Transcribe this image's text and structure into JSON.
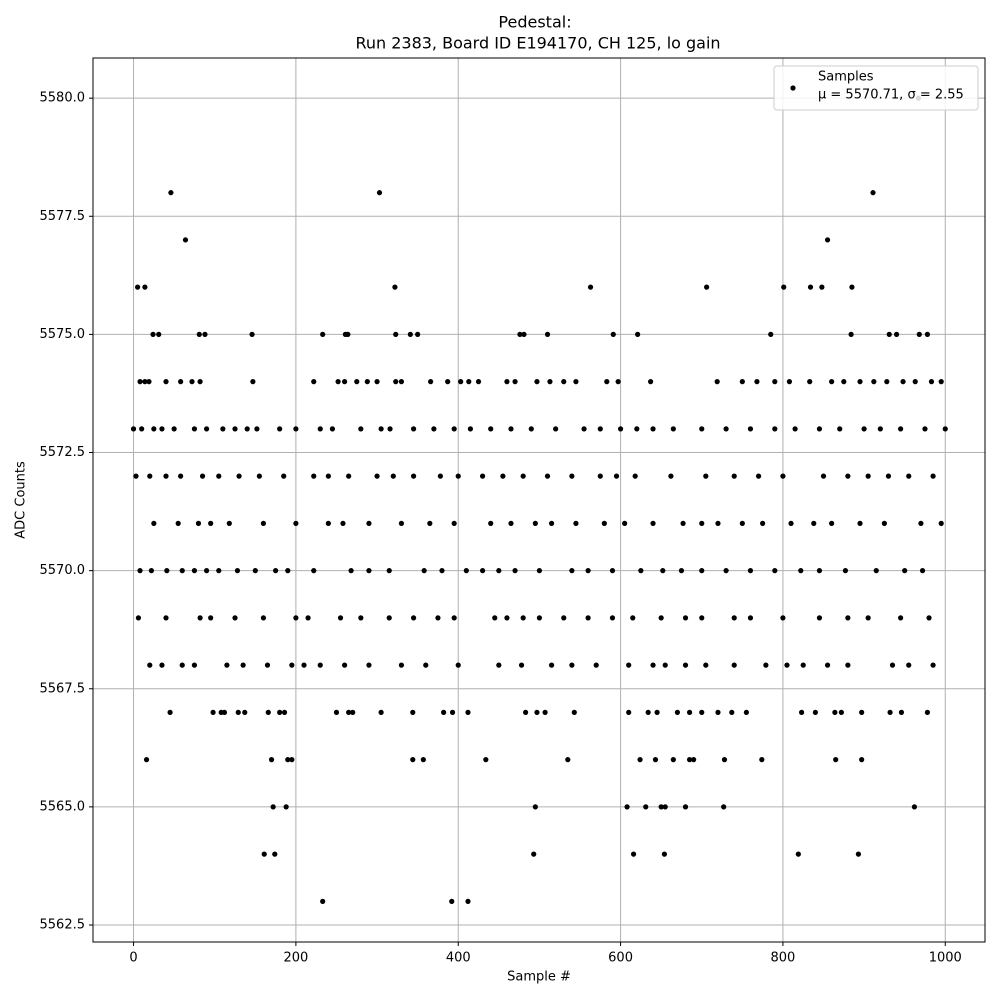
{
  "chart_data": {
    "type": "scatter",
    "title": "Pedestal:",
    "subtitle": "Run 2383, Board ID E194170, CH 125, lo gain",
    "x_label": "Sample #",
    "y_label": "ADC Counts",
    "legend_note": "μ = 5570.71, σ = 2.55",
    "legend_position": "upper right",
    "grid": true,
    "xlim": [
      -49.95,
      1048.95
    ],
    "ylim": [
      5562.14,
      5580.85
    ],
    "xticks": [
      0,
      200,
      400,
      600,
      800,
      1000
    ],
    "yticks": [
      5562.5,
      {
        "value": 5565,
        "label": "5565.0"
      },
      5567.5,
      {
        "value": 5570,
        "label": "5570.0"
      },
      5572.5,
      {
        "value": 5575,
        "label": "5575.0"
      },
      5577.5,
      {
        "value": 5580,
        "label": "5580.0"
      }
    ],
    "series": [
      {
        "name": "Samples",
        "color": "#000000",
        "x": [
          5,
          14,
          46,
          64,
          303,
          322,
          563,
          706,
          801,
          834,
          848,
          855,
          885,
          911,
          967,
          233,
          392,
          412,
          161,
          174,
          493,
          616,
          654,
          819,
          893,
          172,
          188,
          495,
          608,
          631,
          650,
          655,
          680,
          727,
          962,
          16,
          170,
          190,
          195,
          344,
          357,
          434,
          535,
          624,
          643,
          665,
          685,
          690,
          728,
          774,
          865,
          897,
          24,
          31,
          81,
          88,
          146,
          233,
          261,
          264,
          323,
          341,
          350,
          476,
          481,
          510,
          591,
          621,
          785,
          884,
          931,
          940,
          968,
          978,
          45,
          98,
          108,
          112,
          129,
          137,
          166,
          180,
          186,
          250,
          265,
          270,
          305,
          344,
          382,
          393,
          412,
          483,
          497,
          507,
          543,
          610,
          634,
          645,
          670,
          685,
          700,
          720,
          737,
          755,
          823,
          840,
          864,
          872,
          897,
          932,
          946,
          978,
          8,
          14,
          19,
          40,
          58,
          72,
          82,
          147,
          222,
          252,
          260,
          275,
          288,
          300,
          323,
          330,
          366,
          387,
          403,
          413,
          425,
          460,
          470,
          497,
          513,
          530,
          545,
          583,
          597,
          637,
          719,
          750,
          768,
          790,
          808,
          833,
          860,
          875,
          895,
          912,
          928,
          948,
          963,
          983,
          995,
          0,
          10,
          25,
          35,
          50,
          75,
          90,
          110,
          125,
          140,
          152,
          180,
          200,
          230,
          245,
          280,
          305,
          316,
          345,
          370,
          395,
          415,
          440,
          465,
          490,
          520,
          555,
          575,
          600,
          620,
          640,
          665,
          700,
          730,
          760,
          790,
          815,
          845,
          870,
          900,
          920,
          945,
          975,
          1000,
          3,
          20,
          40,
          58,
          85,
          105,
          130,
          155,
          185,
          222,
          240,
          265,
          300,
          320,
          345,
          378,
          400,
          430,
          455,
          480,
          510,
          540,
          575,
          595,
          618,
          662,
          705,
          740,
          770,
          800,
          850,
          880,
          905,
          930,
          955,
          985,
          25,
          55,
          80,
          95,
          118,
          160,
          200,
          240,
          258,
          290,
          330,
          365,
          395,
          440,
          465,
          495,
          515,
          545,
          580,
          605,
          640,
          677,
          700,
          720,
          750,
          775,
          810,
          838,
          860,
          895,
          925,
          970,
          995,
          8,
          22,
          41,
          60,
          75,
          90,
          105,
          128,
          150,
          175,
          190,
          222,
          268,
          290,
          315,
          358,
          380,
          410,
          430,
          450,
          470,
          500,
          540,
          560,
          590,
          625,
          652,
          675,
          700,
          730,
          760,
          790,
          822,
          845,
          877,
          915,
          950,
          972,
          6,
          40,
          82,
          95,
          125,
          160,
          200,
          215,
          255,
          280,
          315,
          345,
          375,
          395,
          445,
          460,
          480,
          500,
          530,
          560,
          590,
          615,
          650,
          680,
          700,
          740,
          760,
          800,
          845,
          880,
          905,
          945,
          980,
          20,
          35,
          60,
          75,
          115,
          135,
          165,
          195,
          210,
          230,
          260,
          290,
          330,
          360,
          400,
          450,
          478,
          515,
          540,
          570,
          610,
          640,
          655,
          680,
          705,
          740,
          779,
          805,
          825,
          855,
          880,
          935,
          955,
          985
        ],
        "values": [
          5576,
          5576,
          5578,
          5577,
          5578,
          5576,
          5576,
          5576,
          5576,
          5576,
          5576,
          5577,
          5576,
          5578,
          5580,
          5563,
          5563,
          5563,
          5564,
          5564,
          5564,
          5564,
          5564,
          5564,
          5564,
          5565,
          5565,
          5565,
          5565,
          5565,
          5565,
          5565,
          5565,
          5565,
          5565,
          5566,
          5566,
          5566,
          5566,
          5566,
          5566,
          5566,
          5566,
          5566,
          5566,
          5566,
          5566,
          5566,
          5566,
          5566,
          5566,
          5566,
          5575,
          5575,
          5575,
          5575,
          5575,
          5575,
          5575,
          5575,
          5575,
          5575,
          5575,
          5575,
          5575,
          5575,
          5575,
          5575,
          5575,
          5575,
          5575,
          5575,
          5575,
          5575,
          5567,
          5567,
          5567,
          5567,
          5567,
          5567,
          5567,
          5567,
          5567,
          5567,
          5567,
          5567,
          5567,
          5567,
          5567,
          5567,
          5567,
          5567,
          5567,
          5567,
          5567,
          5567,
          5567,
          5567,
          5567,
          5567,
          5567,
          5567,
          5567,
          5567,
          5567,
          5567,
          5567,
          5567,
          5567,
          5567,
          5567,
          5567,
          5574,
          5574,
          5574,
          5574,
          5574,
          5574,
          5574,
          5574,
          5574,
          5574,
          5574,
          5574,
          5574,
          5574,
          5574,
          5574,
          5574,
          5574,
          5574,
          5574,
          5574,
          5574,
          5574,
          5574,
          5574,
          5574,
          5574,
          5574,
          5574,
          5574,
          5574,
          5574,
          5574,
          5574,
          5574,
          5574,
          5574,
          5574,
          5574,
          5574,
          5574,
          5574,
          5574,
          5574,
          5574,
          5573,
          5573,
          5573,
          5573,
          5573,
          5573,
          5573,
          5573,
          5573,
          5573,
          5573,
          5573,
          5573,
          5573,
          5573,
          5573,
          5573,
          5573,
          5573,
          5573,
          5573,
          5573,
          5573,
          5573,
          5573,
          5573,
          5573,
          5573,
          5573,
          5573,
          5573,
          5573,
          5573,
          5573,
          5573,
          5573,
          5573,
          5573,
          5573,
          5573,
          5573,
          5573,
          5573,
          5573,
          5572,
          5572,
          5572,
          5572,
          5572,
          5572,
          5572,
          5572,
          5572,
          5572,
          5572,
          5572,
          5572,
          5572,
          5572,
          5572,
          5572,
          5572,
          5572,
          5572,
          5572,
          5572,
          5572,
          5572,
          5572,
          5572,
          5572,
          5572,
          5572,
          5572,
          5572,
          5572,
          5572,
          5572,
          5572,
          5572,
          5571,
          5571,
          5571,
          5571,
          5571,
          5571,
          5571,
          5571,
          5571,
          5571,
          5571,
          5571,
          5571,
          5571,
          5571,
          5571,
          5571,
          5571,
          5571,
          5571,
          5571,
          5571,
          5571,
          5571,
          5571,
          5571,
          5571,
          5571,
          5571,
          5571,
          5571,
          5571,
          5571,
          5570,
          5570,
          5570,
          5570,
          5570,
          5570,
          5570,
          5570,
          5570,
          5570,
          5570,
          5570,
          5570,
          5570,
          5570,
          5570,
          5570,
          5570,
          5570,
          5570,
          5570,
          5570,
          5570,
          5570,
          5570,
          5570,
          5570,
          5570,
          5570,
          5570,
          5570,
          5570,
          5570,
          5570,
          5570,
          5570,
          5570,
          5570,
          5569,
          5569,
          5569,
          5569,
          5569,
          5569,
          5569,
          5569,
          5569,
          5569,
          5569,
          5569,
          5569,
          5569,
          5569,
          5569,
          5569,
          5569,
          5569,
          5569,
          5569,
          5569,
          5569,
          5569,
          5569,
          5569,
          5569,
          5569,
          5569,
          5569,
          5569,
          5569,
          5569,
          5568,
          5568,
          5568,
          5568,
          5568,
          5568,
          5568,
          5568,
          5568,
          5568,
          5568,
          5568,
          5568,
          5568,
          5568,
          5568,
          5568,
          5568,
          5568,
          5568,
          5568,
          5568,
          5568,
          5568,
          5568,
          5568,
          5568,
          5568,
          5568,
          5568,
          5568,
          5568,
          5568,
          5568
        ]
      }
    ]
  }
}
